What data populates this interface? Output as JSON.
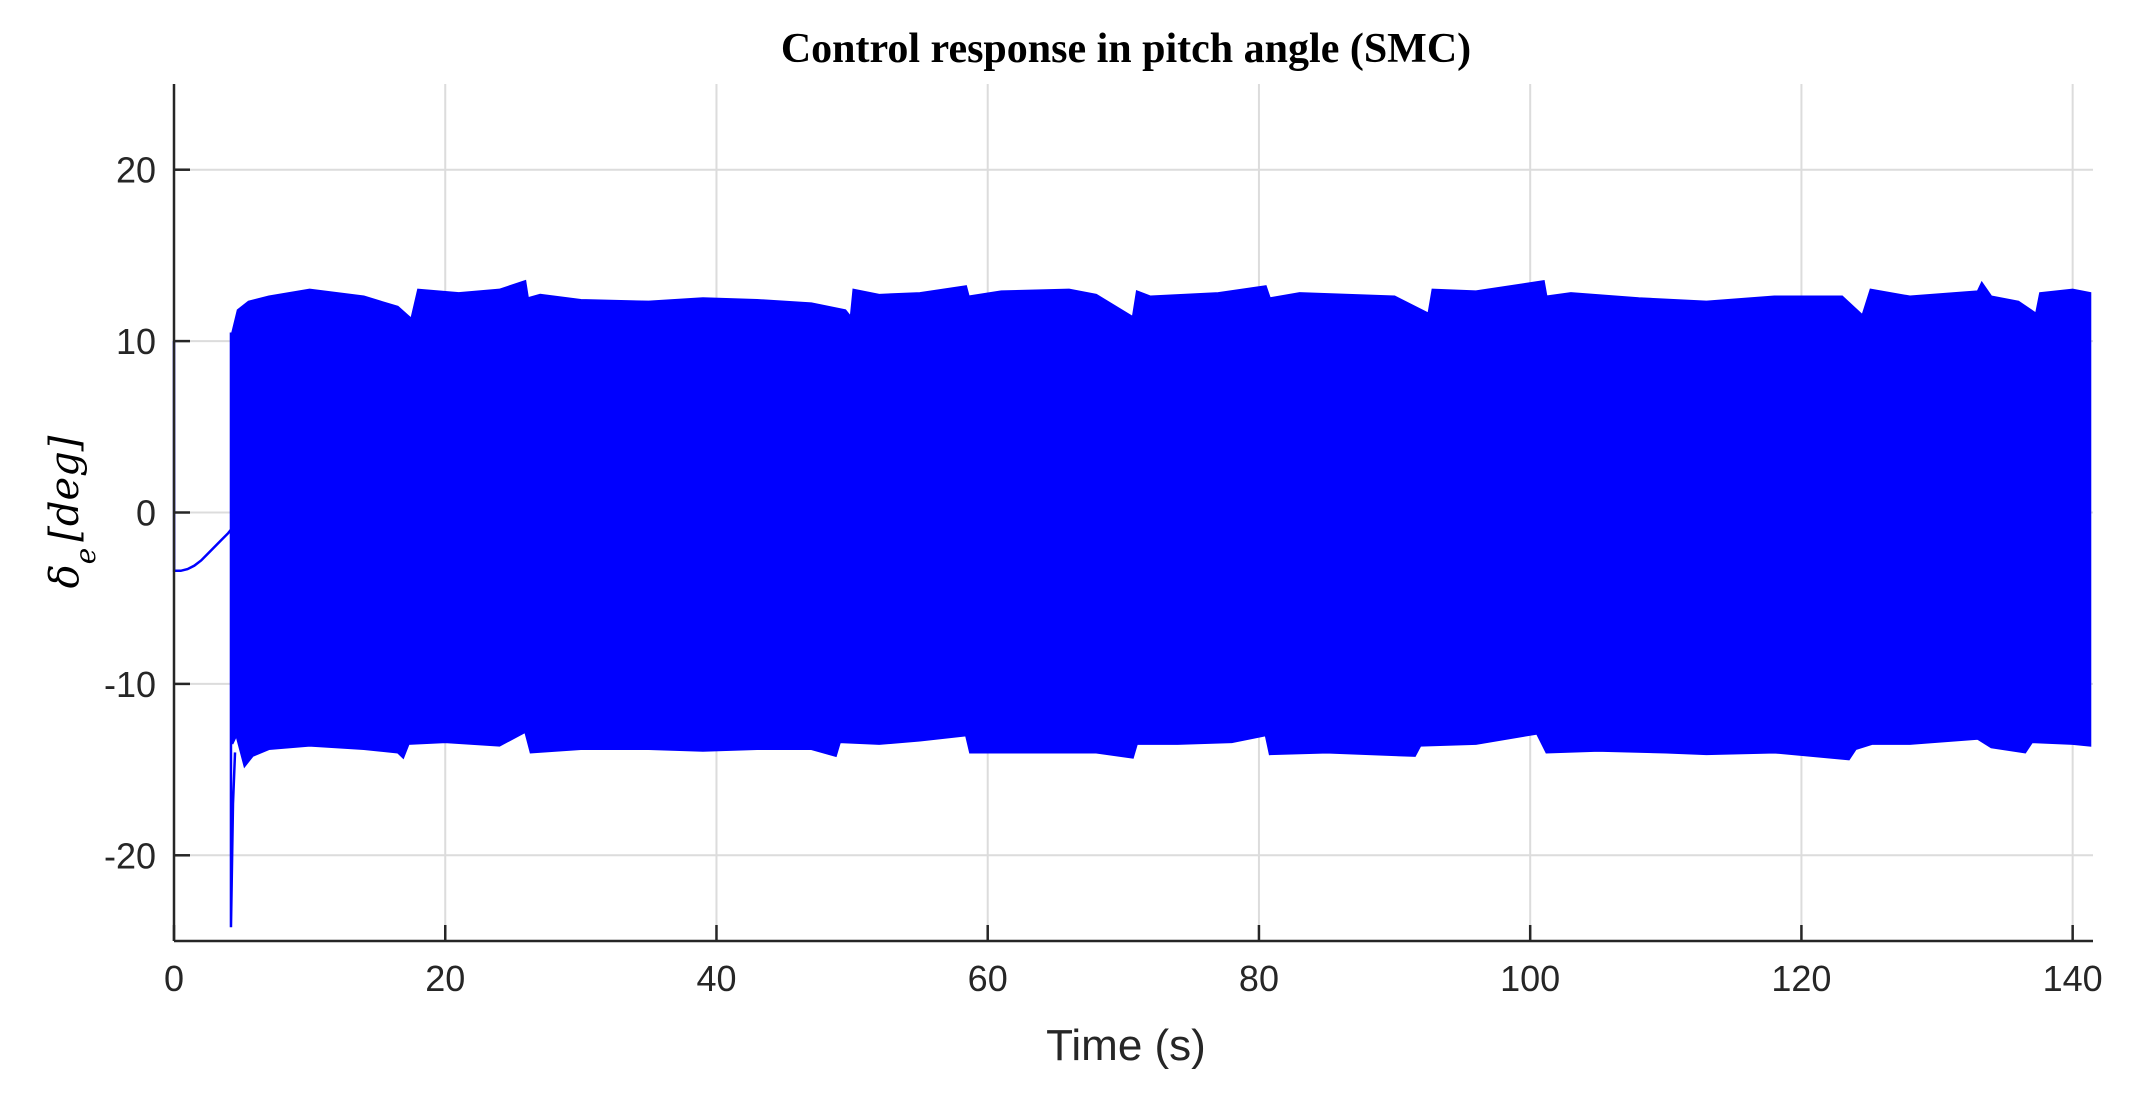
{
  "chart_data": {
    "type": "line",
    "title": "Control response in pitch angle (SMC)",
    "xlabel": "Time (s)",
    "ylabel": {
      "symbol": "δ",
      "subscript": "e",
      "unit": "[deg]"
    },
    "xlim": [
      0,
      141.5
    ],
    "ylim": [
      -25,
      25
    ],
    "xticks": [
      0,
      20,
      40,
      60,
      80,
      100,
      120,
      140
    ],
    "yticks": [
      -20,
      -10,
      0,
      10,
      20
    ],
    "grid": true,
    "colors": {
      "series": "#0000ff",
      "grid": "#dcdcdc",
      "axis": "#262626"
    },
    "series": [
      {
        "initial_transient": {
          "x": [
            0,
            0.01,
            0.5,
            1,
            1.5,
            2,
            2.5,
            3,
            3.5,
            4.0,
            4.2
          ],
          "y": [
            10,
            -3.4,
            -3.4,
            -3.3,
            -3.1,
            -2.8,
            -2.4,
            -2.0,
            -1.6,
            -1.2,
            -1.0
          ]
        },
        "spike": {
          "x": 4.2,
          "y_min": -24.2
        },
        "envelope_upper": {
          "x": [
            4.3,
            4.7,
            5.5,
            7,
            10,
            14,
            16.5,
            17.5,
            18,
            21,
            24,
            25.9,
            26.1,
            27,
            30,
            35,
            39,
            43,
            47,
            49.5,
            49.9,
            50.1,
            52,
            55,
            58.4,
            58.6,
            61,
            66,
            68,
            70.7,
            71.0,
            72,
            77,
            80.5,
            80.8,
            83,
            90,
            92.5,
            92.8,
            96,
            101,
            101.2,
            103,
            108,
            113,
            118,
            123,
            124.5,
            125.1,
            128,
            133,
            133.3,
            134,
            136,
            137.3,
            137.6,
            140,
            141.3
          ],
          "y": [
            10.5,
            11.8,
            12.3,
            12.6,
            13.0,
            12.6,
            12.0,
            11.3,
            13.0,
            12.8,
            13.0,
            13.5,
            12.5,
            12.7,
            12.4,
            12.3,
            12.5,
            12.4,
            12.2,
            11.8,
            11.4,
            13.0,
            12.7,
            12.8,
            13.2,
            12.6,
            12.9,
            13.0,
            12.7,
            11.4,
            12.9,
            12.6,
            12.8,
            13.2,
            12.5,
            12.8,
            12.6,
            11.6,
            13.0,
            12.9,
            13.5,
            12.6,
            12.8,
            12.5,
            12.3,
            12.6,
            12.6,
            11.5,
            13.0,
            12.6,
            12.9,
            13.4,
            12.6,
            12.3,
            11.6,
            12.8,
            13.0,
            12.8
          ],
          "x_end": 141.3
        },
        "envelope_lower": {
          "x": [
            4.3,
            4.6,
            5.2,
            5.8,
            7,
            10,
            14,
            16.5,
            16.9,
            17.3,
            20,
            24,
            25.9,
            26.3,
            30,
            35,
            39,
            43,
            47,
            48.8,
            49.1,
            52,
            55,
            58.4,
            58.7,
            62,
            68,
            70.7,
            71.0,
            74,
            78,
            80.5,
            80.8,
            85,
            91.5,
            91.9,
            96,
            100.5,
            101.2,
            105,
            110,
            113,
            118,
            123.5,
            124.0,
            125.2,
            128,
            133,
            134,
            136.5,
            137.0,
            140,
            141.3
          ],
          "y": [
            -13.5,
            -13.0,
            -14.8,
            -14.2,
            -13.8,
            -13.6,
            -13.8,
            -14.0,
            -14.3,
            -13.5,
            -13.4,
            -13.6,
            -12.8,
            -14.0,
            -13.8,
            -13.8,
            -13.9,
            -13.8,
            -13.8,
            -14.2,
            -13.4,
            -13.5,
            -13.3,
            -13.0,
            -14.0,
            -14.0,
            -14.0,
            -14.3,
            -13.5,
            -13.5,
            -13.4,
            -13.0,
            -14.1,
            -14.0,
            -14.2,
            -13.6,
            -13.5,
            -12.9,
            -14.0,
            -13.9,
            -14.0,
            -14.1,
            -14.0,
            -14.4,
            -13.8,
            -13.5,
            -13.5,
            -13.2,
            -13.7,
            -14.0,
            -13.4,
            -13.5,
            -13.6
          ],
          "x_end": 141.3
        }
      }
    ]
  }
}
